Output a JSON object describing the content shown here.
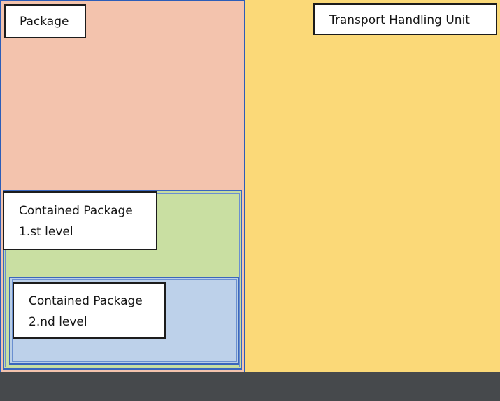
{
  "labels": {
    "package": "Package",
    "transport_handling_unit": "Transport Handling Unit",
    "contained_level1": {
      "line1": "Contained Package",
      "line2": "1.st level"
    },
    "contained_level2": {
      "line1": "Contained Package",
      "line2": "2.nd level"
    }
  },
  "colors": {
    "transport_handling_unit": "#fbd978",
    "package": "#f3c3ad",
    "contained_level1": "#c6dca0",
    "contained_level2": "#bacfe6",
    "borders": "#2c5db8",
    "bottom_strip": "#46494c"
  }
}
